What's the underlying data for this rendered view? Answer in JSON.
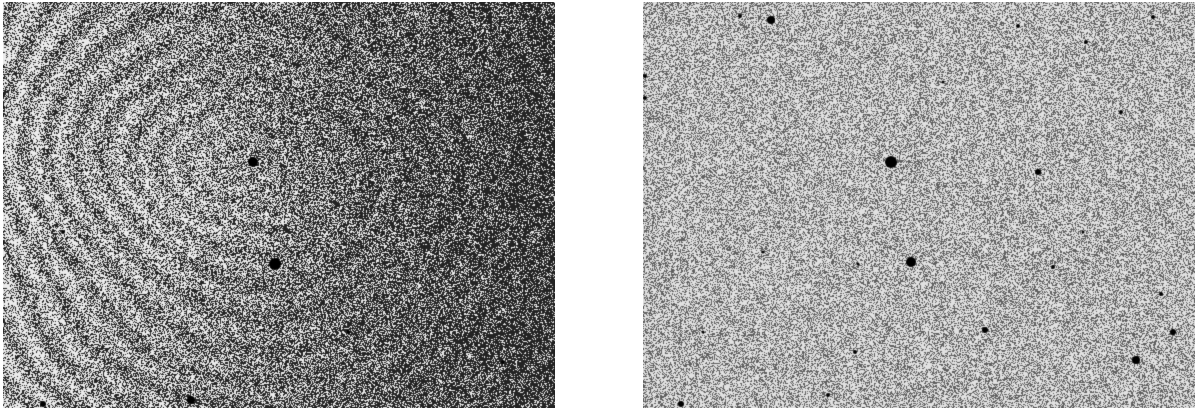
{
  "panels": [
    {
      "id": "raw-frame",
      "kind": "grayscale astronomical image with interference fringe pattern",
      "colors": {
        "background_dark": "#3a3a3a",
        "background_light": "#e0e0e0",
        "star": "#000000"
      }
    },
    {
      "id": "corrected-frame",
      "kind": "grayscale astronomical image, flat-fielded background",
      "colors": {
        "background": "#a8a8a8",
        "star": "#000000"
      }
    }
  ]
}
